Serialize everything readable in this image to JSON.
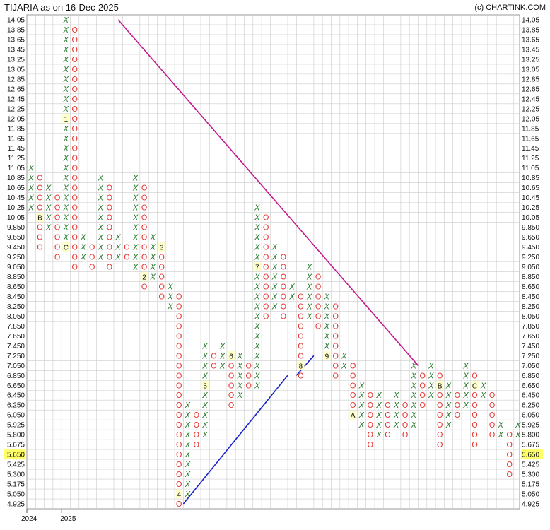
{
  "header": {
    "title": "TIJARIA as on 16-Dec-2025",
    "credit": "(c) CHARTINK.COM"
  },
  "colors": {
    "x_mark": "#2e7d32",
    "o_mark": "#e53935",
    "bearish_trendline": "#c2188b",
    "bullish_trendline": "#1a23c9",
    "last_price_highlight": "#ffff66",
    "month_marker_bg": "#ffffcc",
    "grid": "#cccccc"
  },
  "chart_data": {
    "type": "point-and-figure",
    "title": "TIJARIA as on 16-Dec-2025",
    "price_levels": [
      "14.05",
      "13.85",
      "13.65",
      "13.45",
      "13.25",
      "13.05",
      "12.85",
      "12.65",
      "12.45",
      "12.25",
      "12.05",
      "11.85",
      "11.65",
      "11.45",
      "11.25",
      "11.05",
      "10.85",
      "10.65",
      "10.45",
      "10.25",
      "10.05",
      "9.850",
      "9.650",
      "9.450",
      "9.250",
      "9.050",
      "8.850",
      "8.650",
      "8.450",
      "8.250",
      "8.050",
      "7.850",
      "7.650",
      "7.450",
      "7.250",
      "7.050",
      "6.850",
      "6.650",
      "6.450",
      "6.250",
      "6.050",
      "5.925",
      "5.800",
      "5.675",
      "5.650",
      "5.425",
      "5.300",
      "5.175",
      "5.050",
      "4.925"
    ],
    "last_price": "5.650",
    "year_labels": [
      {
        "label": "2024",
        "column": 0
      },
      {
        "label": "2025",
        "column": 4
      }
    ],
    "columns": [
      {
        "type": "X",
        "high": "11.05",
        "low": "10.25",
        "markers": []
      },
      {
        "type": "O",
        "high": "10.85",
        "low": "9.450",
        "markers": [
          {
            "price": "10.05",
            "label": "B"
          }
        ]
      },
      {
        "type": "X",
        "high": "10.65",
        "low": "9.850",
        "markers": []
      },
      {
        "type": "O",
        "high": "10.45",
        "low": "9.250",
        "markers": []
      },
      {
        "type": "X",
        "high": "14.05",
        "low": "9.450",
        "markers": [
          {
            "price": "12.05",
            "label": "1"
          },
          {
            "price": "9.450",
            "label": "C"
          }
        ]
      },
      {
        "type": "O",
        "high": "13.85",
        "low": "9.050",
        "markers": []
      },
      {
        "type": "X",
        "high": "9.650",
        "low": "9.250",
        "markers": []
      },
      {
        "type": "O",
        "high": "9.450",
        "low": "9.050",
        "markers": []
      },
      {
        "type": "X",
        "high": "10.85",
        "low": "9.250",
        "markers": []
      },
      {
        "type": "O",
        "high": "10.65",
        "low": "9.050",
        "markers": []
      },
      {
        "type": "X",
        "high": "9.650",
        "low": "9.250",
        "markers": []
      },
      {
        "type": "O",
        "high": "9.450",
        "low": "9.250",
        "markers": []
      },
      {
        "type": "X",
        "high": "10.85",
        "low": "9.050",
        "markers": []
      },
      {
        "type": "O",
        "high": "10.65",
        "low": "8.650",
        "markers": [
          {
            "price": "8.850",
            "label": "2"
          }
        ]
      },
      {
        "type": "X",
        "high": "9.650",
        "low": "8.850",
        "markers": []
      },
      {
        "type": "O",
        "high": "9.450",
        "low": "8.450",
        "markers": [
          {
            "price": "9.450",
            "label": "3"
          }
        ]
      },
      {
        "type": "X",
        "high": "8.650",
        "low": "8.250",
        "markers": []
      },
      {
        "type": "O",
        "high": "8.450",
        "low": "4.925",
        "markers": [
          {
            "price": "5.050",
            "label": "4"
          }
        ]
      },
      {
        "type": "X",
        "high": "6.250",
        "low": "5.050",
        "markers": []
      },
      {
        "type": "O",
        "high": "6.050",
        "low": "5.675",
        "markers": []
      },
      {
        "type": "X",
        "high": "7.450",
        "low": "5.800",
        "markers": [
          {
            "price": "6.650",
            "label": "5"
          }
        ]
      },
      {
        "type": "O",
        "high": "7.250",
        "low": "7.050",
        "markers": []
      },
      {
        "type": "X",
        "high": "7.450",
        "low": "7.050",
        "markers": []
      },
      {
        "type": "O",
        "high": "7.250",
        "low": "6.250",
        "markers": [
          {
            "price": "7.250",
            "label": "6"
          }
        ]
      },
      {
        "type": "X",
        "high": "7.250",
        "low": "6.450",
        "markers": []
      },
      {
        "type": "O",
        "high": "7.050",
        "low": "6.650",
        "markers": []
      },
      {
        "type": "X",
        "high": "10.25",
        "low": "6.650",
        "markers": [
          {
            "price": "9.050",
            "label": "7"
          }
        ]
      },
      {
        "type": "O",
        "high": "10.05",
        "low": "8.050",
        "markers": []
      },
      {
        "type": "X",
        "high": "9.450",
        "low": "8.250",
        "markers": []
      },
      {
        "type": "O",
        "high": "9.250",
        "low": "8.050",
        "markers": []
      },
      {
        "type": "X",
        "high": "8.650",
        "low": "8.450",
        "markers": []
      },
      {
        "type": "O",
        "high": "8.450",
        "low": "6.850",
        "markers": [
          {
            "price": "7.050",
            "label": "8"
          }
        ]
      },
      {
        "type": "X",
        "high": "9.050",
        "low": "8.050",
        "markers": []
      },
      {
        "type": "O",
        "high": "8.850",
        "low": "7.850",
        "markers": []
      },
      {
        "type": "X",
        "high": "8.450",
        "low": "7.250",
        "markers": [
          {
            "price": "7.250",
            "label": "9"
          }
        ]
      },
      {
        "type": "O",
        "high": "8.250",
        "low": "6.850",
        "markers": []
      },
      {
        "type": "X",
        "high": "7.250",
        "low": "7.050",
        "markers": []
      },
      {
        "type": "O",
        "high": "7.050",
        "low": "6.050",
        "markers": [
          {
            "price": "6.050",
            "label": "A"
          }
        ]
      },
      {
        "type": "X",
        "high": "6.650",
        "low": "5.925",
        "markers": []
      },
      {
        "type": "O",
        "high": "6.450",
        "low": "5.675",
        "markers": []
      },
      {
        "type": "X",
        "high": "6.450",
        "low": "5.800",
        "markers": []
      },
      {
        "type": "O",
        "high": "6.250",
        "low": "5.800",
        "markers": []
      },
      {
        "type": "X",
        "high": "6.450",
        "low": "5.925",
        "markers": []
      },
      {
        "type": "O",
        "high": "6.250",
        "low": "5.800",
        "markers": []
      },
      {
        "type": "X",
        "high": "7.050",
        "low": "5.925",
        "markers": []
      },
      {
        "type": "O",
        "high": "6.850",
        "low": "6.250",
        "markers": []
      },
      {
        "type": "X",
        "high": "7.050",
        "low": "6.450",
        "markers": []
      },
      {
        "type": "O",
        "high": "6.850",
        "low": "5.675",
        "markers": [
          {
            "price": "6.650",
            "label": "B"
          }
        ]
      },
      {
        "type": "X",
        "high": "6.650",
        "low": "5.925",
        "markers": []
      },
      {
        "type": "O",
        "high": "6.450",
        "low": "6.050",
        "markers": []
      },
      {
        "type": "X",
        "high": "7.050",
        "low": "6.250",
        "markers": []
      },
      {
        "type": "O",
        "high": "6.850",
        "low": "5.675",
        "markers": [
          {
            "price": "6.650",
            "label": "C"
          }
        ]
      },
      {
        "type": "X",
        "high": "6.650",
        "low": "6.450",
        "markers": []
      },
      {
        "type": "O",
        "high": "6.450",
        "low": "5.800",
        "markers": []
      },
      {
        "type": "X",
        "high": "5.925",
        "low": "5.800",
        "markers": []
      },
      {
        "type": "O",
        "high": "5.800",
        "low": "5.300",
        "markers": []
      },
      {
        "type": "X",
        "high": "5.925",
        "low": "5.800",
        "markers": []
      }
    ],
    "trendlines": [
      {
        "kind": "bearish",
        "from": {
          "column": 10.5,
          "price": "14.05"
        },
        "to": {
          "column": 45,
          "price": "7.050"
        }
      },
      {
        "kind": "bullish",
        "from": {
          "column": 18,
          "price": "4.925"
        },
        "to": {
          "column": 30,
          "price": "6.850"
        }
      },
      {
        "kind": "bullish",
        "from": {
          "column": 31,
          "price": "6.850"
        },
        "to": {
          "column": 33,
          "price": "7.250"
        }
      }
    ],
    "grid": true
  }
}
